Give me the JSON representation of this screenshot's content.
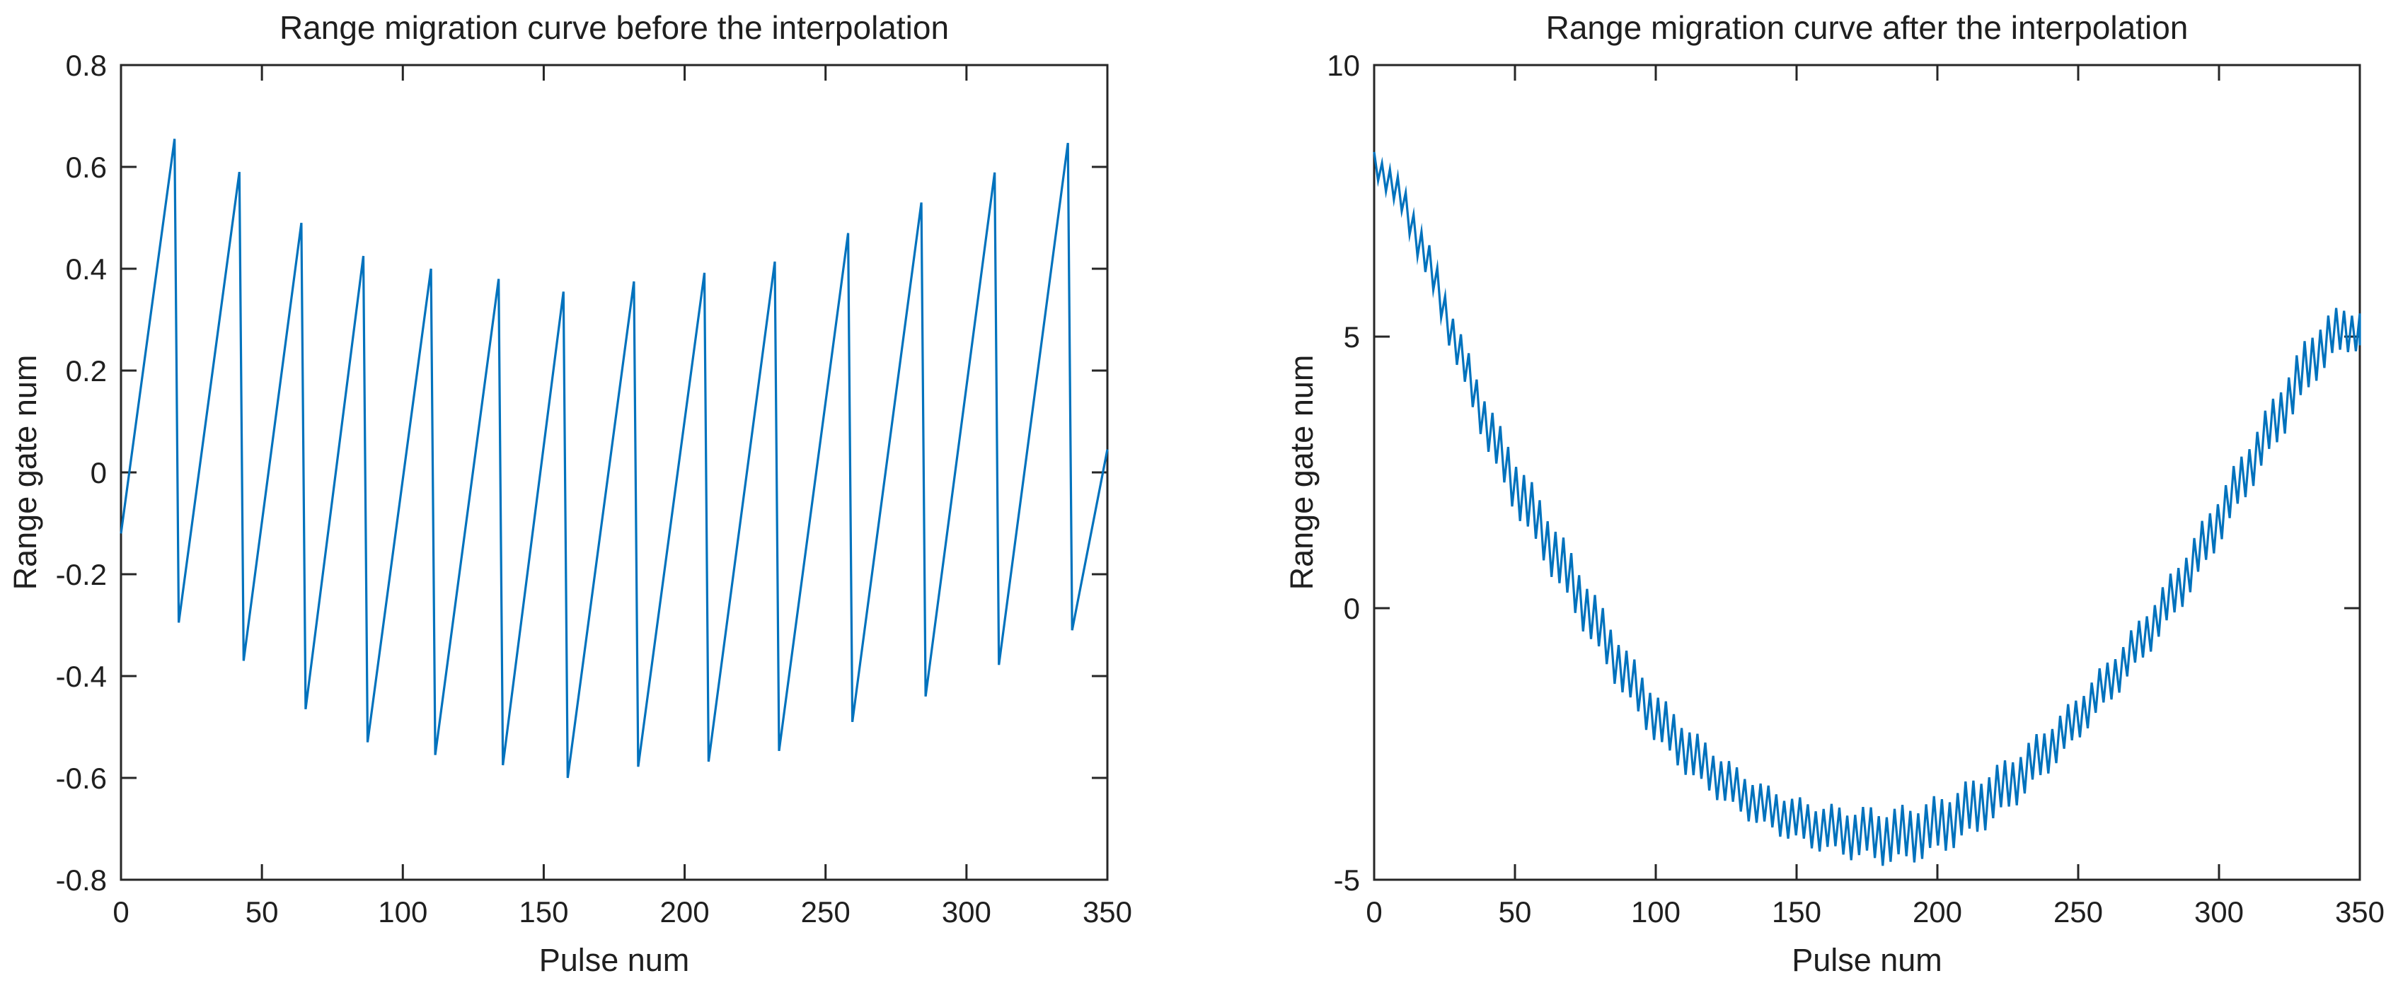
{
  "figure": {
    "background": "#ffffff",
    "default_line_color": "#0072BD",
    "axis_color": "#262626",
    "text_color": "#1f1f1f"
  },
  "chart_data": [
    {
      "type": "line",
      "title": "Range migration curve before the interpolation",
      "xlabel": "Pulse num",
      "ylabel": "Range gate num",
      "xlim": [
        0,
        350
      ],
      "ylim": [
        -0.8,
        0.8
      ],
      "xticks": [
        0,
        50,
        100,
        150,
        200,
        250,
        300,
        350
      ],
      "yticks": [
        -0.8,
        -0.6,
        -0.4,
        -0.2,
        0,
        0.2,
        0.4,
        0.6,
        0.8
      ],
      "grid": false,
      "legend": null,
      "line_color": "#0072BD",
      "series": "range migration wrapped into one range gate (sawtooth)",
      "points": [
        [
          0,
          -0.12
        ],
        [
          19,
          0.655
        ],
        [
          20.5,
          -0.295
        ],
        [
          42,
          0.59
        ],
        [
          43.5,
          -0.37
        ],
        [
          64,
          0.49
        ],
        [
          65.5,
          -0.465
        ],
        [
          86,
          0.425
        ],
        [
          87.5,
          -0.53
        ],
        [
          110,
          0.4
        ],
        [
          111.5,
          -0.555
        ],
        [
          134,
          0.38
        ],
        [
          135.5,
          -0.575
        ],
        [
          157,
          0.355
        ],
        [
          158.5,
          -0.6
        ],
        [
          182,
          0.375
        ],
        [
          183.5,
          -0.578
        ],
        [
          207,
          0.392
        ],
        [
          208.5,
          -0.568
        ],
        [
          232,
          0.414
        ],
        [
          233.5,
          -0.547
        ],
        [
          258,
          0.47
        ],
        [
          259.5,
          -0.49
        ],
        [
          284,
          0.53
        ],
        [
          285.5,
          -0.44
        ],
        [
          310,
          0.589
        ],
        [
          311.5,
          -0.378
        ],
        [
          336,
          0.647
        ],
        [
          337.5,
          -0.31
        ],
        [
          350,
          0.045
        ]
      ]
    },
    {
      "type": "line",
      "title": "Range migration curve after the interpolation",
      "xlabel": "Pulse num",
      "ylabel": "Range gate num",
      "xlim": [
        0,
        350
      ],
      "ylim": [
        -5,
        10
      ],
      "xticks": [
        0,
        50,
        100,
        150,
        200,
        250,
        300,
        350
      ],
      "yticks": [
        -5,
        0,
        5,
        10
      ],
      "grid": false,
      "legend": null,
      "line_color": "#0072BD",
      "series": "unwrapped range migration curve with per-pulse jitter",
      "trend_points": [
        [
          0,
          8.2
        ],
        [
          5,
          7.9
        ],
        [
          10,
          7.5
        ],
        [
          15,
          6.9
        ],
        [
          20,
          6.25
        ],
        [
          25,
          5.5
        ],
        [
          30,
          4.75
        ],
        [
          35,
          4.05
        ],
        [
          40,
          3.4
        ],
        [
          45,
          2.8
        ],
        [
          50,
          2.3
        ],
        [
          55,
          1.85
        ],
        [
          60,
          1.4
        ],
        [
          65,
          0.95
        ],
        [
          70,
          0.5
        ],
        [
          75,
          0.05
        ],
        [
          80,
          -0.4
        ],
        [
          85,
          -0.85
        ],
        [
          90,
          -1.25
        ],
        [
          95,
          -1.65
        ],
        [
          100,
          -2.0
        ],
        [
          105,
          -2.3
        ],
        [
          110,
          -2.55
        ],
        [
          115,
          -2.8
        ],
        [
          120,
          -3.0
        ],
        [
          125,
          -3.2
        ],
        [
          130,
          -3.4
        ],
        [
          135,
          -3.55
        ],
        [
          140,
          -3.7
        ],
        [
          145,
          -3.8
        ],
        [
          150,
          -3.9
        ],
        [
          155,
          -4.0
        ],
        [
          160,
          -4.05
        ],
        [
          165,
          -4.1
        ],
        [
          170,
          -4.15
        ],
        [
          175,
          -4.15
        ],
        [
          180,
          -4.2
        ],
        [
          185,
          -4.2
        ],
        [
          190,
          -4.15
        ],
        [
          195,
          -4.1
        ],
        [
          200,
          -4.0
        ],
        [
          205,
          -3.9
        ],
        [
          210,
          -3.75
        ],
        [
          215,
          -3.6
        ],
        [
          220,
          -3.45
        ],
        [
          225,
          -3.25
        ],
        [
          230,
          -3.05
        ],
        [
          235,
          -2.8
        ],
        [
          240,
          -2.55
        ],
        [
          245,
          -2.3
        ],
        [
          250,
          -2.0
        ],
        [
          255,
          -1.7
        ],
        [
          260,
          -1.4
        ],
        [
          265,
          -1.1
        ],
        [
          270,
          -0.75
        ],
        [
          275,
          -0.4
        ],
        [
          280,
          -0.05
        ],
        [
          285,
          0.35
        ],
        [
          290,
          0.75
        ],
        [
          295,
          1.2
        ],
        [
          300,
          1.65
        ],
        [
          305,
          2.1
        ],
        [
          310,
          2.55
        ],
        [
          315,
          3.0
        ],
        [
          320,
          3.45
        ],
        [
          325,
          3.9
        ],
        [
          330,
          4.35
        ],
        [
          335,
          4.75
        ],
        [
          340,
          5.0
        ],
        [
          345,
          5.15
        ],
        [
          350,
          5.1
        ]
      ],
      "noise": {
        "period_pulses": 2.8,
        "amplitude_jitter": 0.25,
        "amplitude_points": [
          [
            0,
            0.2
          ],
          [
            15,
            0.3
          ],
          [
            30,
            0.35
          ],
          [
            50,
            0.45
          ],
          [
            70,
            0.45
          ],
          [
            90,
            0.4
          ],
          [
            110,
            0.4
          ],
          [
            130,
            0.35
          ],
          [
            150,
            0.35
          ],
          [
            170,
            0.4
          ],
          [
            185,
            0.45
          ],
          [
            200,
            0.45
          ],
          [
            215,
            0.45
          ],
          [
            230,
            0.4
          ],
          [
            250,
            0.35
          ],
          [
            270,
            0.35
          ],
          [
            290,
            0.4
          ],
          [
            310,
            0.4
          ],
          [
            330,
            0.45
          ],
          [
            340,
            0.4
          ],
          [
            350,
            0.32
          ]
        ]
      }
    }
  ]
}
